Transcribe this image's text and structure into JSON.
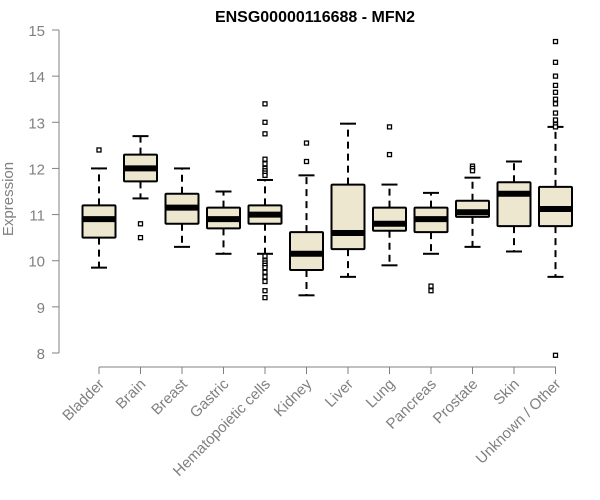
{
  "chart_data": {
    "type": "box",
    "title": "ENSG00000116688 - MFN2",
    "xlabel": "",
    "ylabel": "Expression",
    "ylim": [
      8,
      15
    ],
    "yticks": [
      8,
      9,
      10,
      11,
      12,
      13,
      14,
      15
    ],
    "grid": false,
    "colors": {
      "box_fill": "#ede7cf",
      "box_stroke": "#000000",
      "axis": "#808080",
      "title": "#000000"
    },
    "categories": [
      "Bladder",
      "Brain",
      "Breast",
      "Gastric",
      "Hematopoietic cells",
      "Kidney",
      "Liver",
      "Lung",
      "Pancreas",
      "Prostate",
      "Skin",
      "Unknown / Other"
    ],
    "boxes": [
      {
        "whisker_low": 9.85,
        "q1": 10.5,
        "median": 10.9,
        "q3": 11.2,
        "whisker_high": 12.0,
        "outliers": [
          12.4
        ]
      },
      {
        "whisker_low": 11.35,
        "q1": 11.72,
        "median": 12.0,
        "q3": 12.3,
        "whisker_high": 12.7,
        "outliers": [
          10.8,
          10.5
        ]
      },
      {
        "whisker_low": 10.3,
        "q1": 10.8,
        "median": 11.15,
        "q3": 11.45,
        "whisker_high": 12.0,
        "outliers": []
      },
      {
        "whisker_low": 10.15,
        "q1": 10.7,
        "median": 10.9,
        "q3": 11.15,
        "whisker_high": 11.5,
        "outliers": []
      },
      {
        "whisker_low": 10.15,
        "q1": 10.8,
        "median": 11.0,
        "q3": 11.2,
        "whisker_high": 11.75,
        "outliers": [
          13.4,
          13.0,
          12.75,
          12.2,
          12.1,
          12.0,
          11.95,
          11.9,
          11.85,
          10.1,
          10.0,
          9.95,
          9.9,
          9.85,
          9.75,
          9.65,
          9.55,
          9.35,
          9.2
        ]
      },
      {
        "whisker_low": 9.25,
        "q1": 9.8,
        "median": 10.15,
        "q3": 10.62,
        "whisker_high": 11.85,
        "outliers": [
          12.55,
          12.15
        ]
      },
      {
        "whisker_low": 9.65,
        "q1": 10.25,
        "median": 10.6,
        "q3": 11.65,
        "whisker_high": 12.97,
        "outliers": []
      },
      {
        "whisker_low": 9.9,
        "q1": 10.65,
        "median": 10.8,
        "q3": 11.15,
        "whisker_high": 11.65,
        "outliers": [
          12.9,
          12.3
        ]
      },
      {
        "whisker_low": 10.15,
        "q1": 10.62,
        "median": 10.9,
        "q3": 11.15,
        "whisker_high": 11.47,
        "outliers": [
          9.45,
          9.35
        ]
      },
      {
        "whisker_low": 10.3,
        "q1": 10.95,
        "median": 11.05,
        "q3": 11.3,
        "whisker_high": 11.8,
        "outliers": [
          12.05,
          12.0,
          11.95
        ]
      },
      {
        "whisker_low": 10.2,
        "q1": 10.75,
        "median": 11.45,
        "q3": 11.7,
        "whisker_high": 12.15,
        "outliers": []
      },
      {
        "whisker_low": 9.65,
        "q1": 10.75,
        "median": 11.12,
        "q3": 11.6,
        "whisker_high": 12.9,
        "outliers": [
          14.75,
          14.3,
          14.0,
          13.8,
          13.65,
          13.5,
          13.4,
          13.2,
          13.05,
          12.95,
          12.9,
          7.95
        ]
      }
    ]
  }
}
